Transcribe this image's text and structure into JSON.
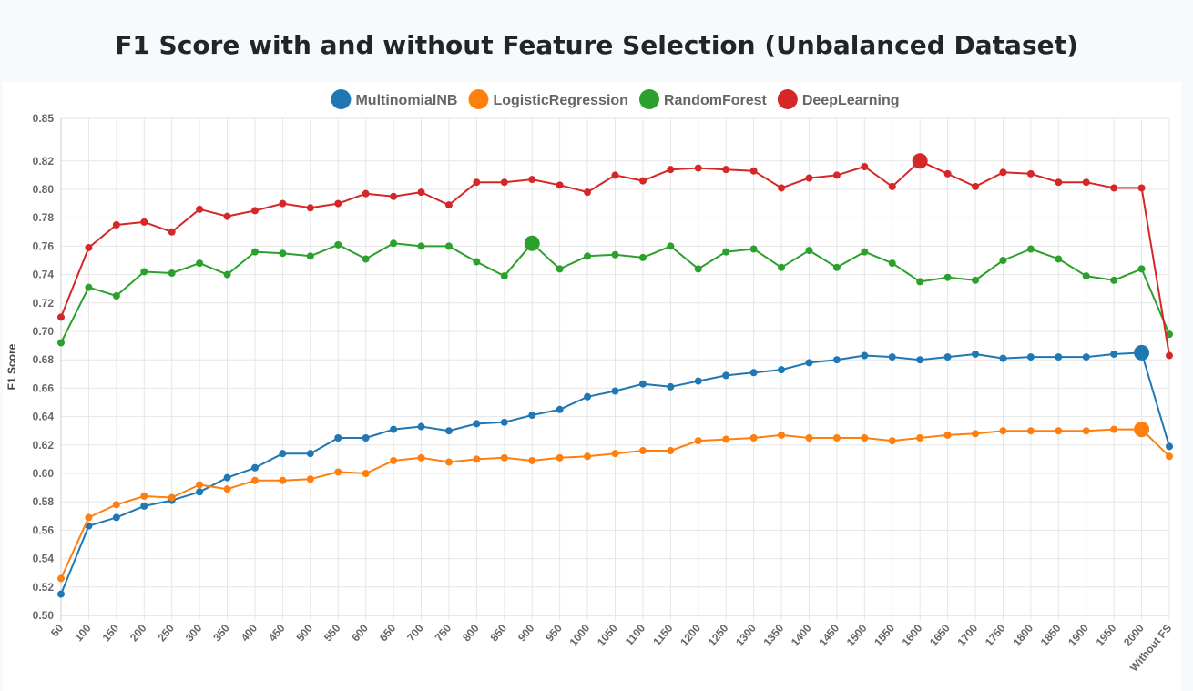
{
  "page": {
    "title": "F1 Score with and without Feature Selection (Unbalanced Dataset)"
  },
  "chart_data": {
    "type": "line",
    "title": "F1 Score with and without Feature Selection (Unbalanced Dataset)",
    "xlabel": "",
    "ylabel": "F1 Score",
    "ylim": [
      0.5,
      0.85
    ],
    "y_ticks": [
      "0.85",
      "0.82",
      "0.80",
      "0.78",
      "0.76",
      "0.74",
      "0.72",
      "0.70",
      "0.68",
      "0.66",
      "0.64",
      "0.62",
      "0.60",
      "0.58",
      "0.56",
      "0.54",
      "0.52",
      "0.50"
    ],
    "grid": true,
    "legend_position": "top",
    "categories": [
      "50",
      "100",
      "150",
      "200",
      "250",
      "300",
      "350",
      "400",
      "450",
      "500",
      "550",
      "600",
      "650",
      "700",
      "750",
      "800",
      "850",
      "900",
      "950",
      "1000",
      "1050",
      "1100",
      "1150",
      "1200",
      "1250",
      "1300",
      "1350",
      "1400",
      "1450",
      "1500",
      "1550",
      "1600",
      "1650",
      "1700",
      "1750",
      "1800",
      "1850",
      "1900",
      "1950",
      "2000",
      "Without FS"
    ],
    "series": [
      {
        "name": "MultinomialNB",
        "color": "#1f77b4",
        "highlight_index": 39,
        "values": [
          0.515,
          0.563,
          0.569,
          0.577,
          0.581,
          0.587,
          0.597,
          0.604,
          0.614,
          0.614,
          0.625,
          0.625,
          0.631,
          0.633,
          0.63,
          0.635,
          0.636,
          0.641,
          0.645,
          0.654,
          0.658,
          0.663,
          0.661,
          0.665,
          0.669,
          0.671,
          0.673,
          0.678,
          0.68,
          0.683,
          0.682,
          0.68,
          0.682,
          0.684,
          0.681,
          0.682,
          0.682,
          0.682,
          0.684,
          0.685,
          0.619
        ]
      },
      {
        "name": "LogisticRegression",
        "color": "#ff7f0e",
        "highlight_index": 39,
        "values": [
          0.526,
          0.569,
          0.578,
          0.584,
          0.583,
          0.592,
          0.589,
          0.595,
          0.595,
          0.596,
          0.601,
          0.6,
          0.609,
          0.611,
          0.608,
          0.61,
          0.611,
          0.609,
          0.611,
          0.612,
          0.614,
          0.616,
          0.616,
          0.623,
          0.624,
          0.625,
          0.627,
          0.625,
          0.625,
          0.625,
          0.623,
          0.625,
          0.627,
          0.628,
          0.63,
          0.63,
          0.63,
          0.63,
          0.631,
          0.631,
          0.612
        ]
      },
      {
        "name": "RandomForest",
        "color": "#2ca02c",
        "highlight_index": 17,
        "values": [
          0.692,
          0.731,
          0.725,
          0.742,
          0.741,
          0.748,
          0.74,
          0.756,
          0.755,
          0.753,
          0.761,
          0.751,
          0.762,
          0.76,
          0.76,
          0.749,
          0.739,
          0.762,
          0.744,
          0.753,
          0.754,
          0.752,
          0.76,
          0.744,
          0.756,
          0.758,
          0.745,
          0.757,
          0.745,
          0.756,
          0.748,
          0.735,
          0.738,
          0.736,
          0.75,
          0.758,
          0.751,
          0.739,
          0.736,
          0.744,
          0.698
        ]
      },
      {
        "name": "DeepLearning",
        "color": "#d62728",
        "highlight_index": 31,
        "values": [
          0.71,
          0.759,
          0.775,
          0.777,
          0.77,
          0.786,
          0.781,
          0.785,
          0.79,
          0.787,
          0.79,
          0.797,
          0.795,
          0.798,
          0.789,
          0.805,
          0.805,
          0.807,
          0.803,
          0.798,
          0.81,
          0.806,
          0.814,
          0.815,
          0.814,
          0.813,
          0.801,
          0.808,
          0.81,
          0.816,
          0.802,
          0.82,
          0.811,
          0.802,
          0.812,
          0.811,
          0.805,
          0.805,
          0.801,
          0.801,
          0.683
        ]
      }
    ]
  }
}
